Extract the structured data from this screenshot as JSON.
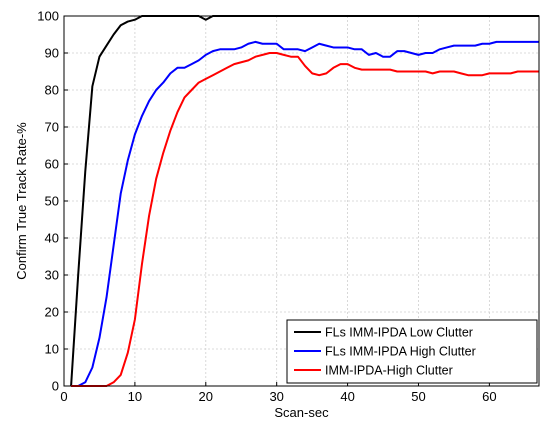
{
  "chart_data": {
    "type": "line",
    "xlabel": "Scan-sec",
    "ylabel": "Confirm True Track Rate-%",
    "xlim": [
      0,
      67
    ],
    "ylim": [
      0,
      100
    ],
    "xticks": [
      0,
      10,
      20,
      30,
      40,
      50,
      60
    ],
    "yticks": [
      0,
      10,
      20,
      30,
      40,
      50,
      60,
      70,
      80,
      90,
      100
    ],
    "grid": true,
    "legend_position": "bottom-right",
    "series": [
      {
        "name": "FLs IMM-IPDA Low Clutter",
        "color": "#000000",
        "x": [
          1,
          2,
          3,
          4,
          5,
          6,
          7,
          8,
          9,
          10,
          11,
          12,
          13,
          14,
          15,
          16,
          17,
          18,
          19,
          20,
          21,
          22,
          30,
          40,
          41,
          50,
          60,
          67
        ],
        "y": [
          0,
          30,
          58,
          81,
          89,
          92,
          95,
          97.5,
          98.5,
          99,
          100,
          100,
          100,
          100,
          100,
          100,
          100,
          100,
          100,
          99,
          100,
          100,
          100,
          100,
          100,
          100,
          100,
          100
        ]
      },
      {
        "name": "FLs IMM-IPDA High Clutter",
        "color": "#0000ff",
        "x": [
          1,
          2,
          3,
          4,
          5,
          6,
          7,
          8,
          9,
          10,
          11,
          12,
          13,
          14,
          15,
          16,
          17,
          18,
          19,
          20,
          21,
          22,
          23,
          24,
          25,
          26,
          27,
          28,
          29,
          30,
          31,
          32,
          33,
          34,
          35,
          36,
          37,
          38,
          39,
          40,
          41,
          42,
          43,
          44,
          45,
          46,
          47,
          48,
          49,
          50,
          51,
          52,
          53,
          54,
          55,
          56,
          57,
          58,
          59,
          60,
          61,
          62,
          63,
          64,
          65,
          66,
          67
        ],
        "y": [
          0,
          0,
          1,
          5,
          13,
          24,
          38,
          52,
          61,
          68,
          73,
          77,
          80,
          82,
          84.5,
          86,
          86,
          87,
          88,
          89.5,
          90.5,
          91,
          91,
          91,
          91.5,
          92.5,
          93,
          92.5,
          92.5,
          92.5,
          91,
          91,
          91,
          90.5,
          91.5,
          92.5,
          92,
          91.5,
          91.5,
          91.5,
          91,
          91,
          89.5,
          90,
          89,
          89,
          90.5,
          90.5,
          90,
          89.5,
          90,
          90,
          91,
          91.5,
          92,
          92,
          92,
          92,
          92.5,
          92.5,
          93,
          93,
          93,
          93,
          93,
          93,
          93
        ]
      },
      {
        "name": "IMM-IPDA-High Clutter",
        "color": "#ff0000",
        "x": [
          1,
          2,
          3,
          4,
          5,
          6,
          7,
          8,
          9,
          10,
          11,
          12,
          13,
          14,
          15,
          16,
          17,
          18,
          19,
          20,
          21,
          22,
          23,
          24,
          25,
          26,
          27,
          28,
          29,
          30,
          31,
          32,
          33,
          34,
          35,
          36,
          37,
          38,
          39,
          40,
          41,
          42,
          43,
          44,
          45,
          46,
          47,
          48,
          49,
          50,
          51,
          52,
          53,
          54,
          55,
          56,
          57,
          58,
          59,
          60,
          61,
          62,
          63,
          64,
          65,
          66,
          67
        ],
        "y": [
          0,
          0,
          0,
          0,
          0,
          0,
          1,
          3,
          9,
          18,
          33,
          46,
          56,
          63,
          69,
          74,
          78,
          80,
          82,
          83,
          84,
          85,
          86,
          87,
          87.5,
          88,
          89,
          89.5,
          90,
          90,
          89.5,
          89,
          89,
          86.5,
          84.5,
          84,
          84.5,
          86,
          87,
          87,
          86,
          85.5,
          85.5,
          85.5,
          85.5,
          85.5,
          85,
          85,
          85,
          85,
          85,
          84.5,
          85,
          85,
          85,
          84.5,
          84,
          84,
          84,
          84.5,
          84.5,
          84.5,
          84.5,
          85,
          85,
          85,
          85
        ]
      }
    ]
  }
}
